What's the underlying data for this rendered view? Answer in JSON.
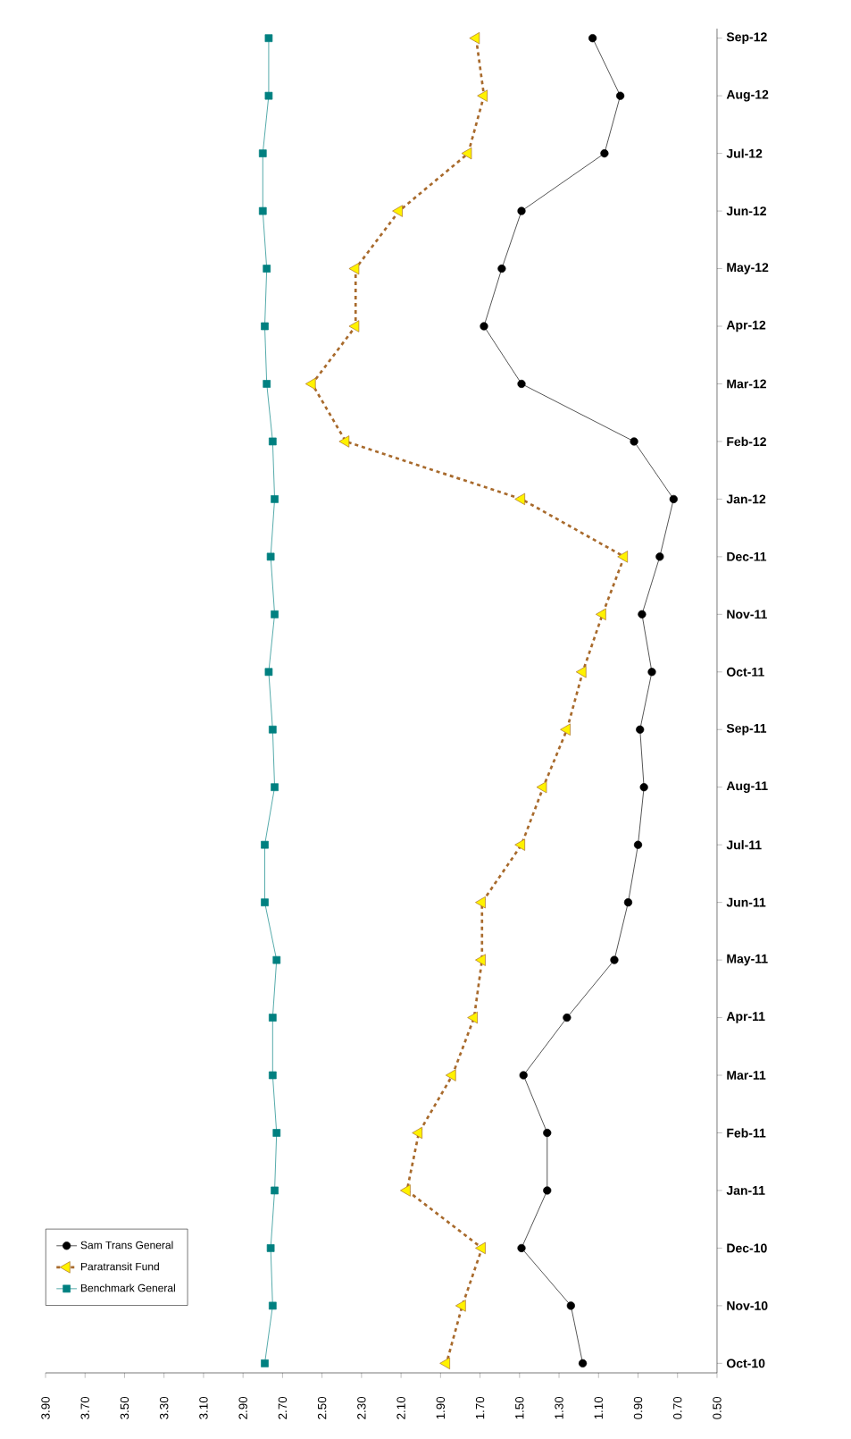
{
  "chart_data": {
    "type": "line",
    "orientation": "horizontal",
    "categories": [
      "Sep-12",
      "Aug-12",
      "Jul-12",
      "Jun-12",
      "May-12",
      "Apr-12",
      "Mar-12",
      "Feb-12",
      "Jan-12",
      "Dec-11",
      "Nov-11",
      "Oct-11",
      "Sep-11",
      "Aug-11",
      "Jul-11",
      "Jun-11",
      "May-11",
      "Apr-11",
      "Mar-11",
      "Feb-11",
      "Jan-11",
      "Dec-10",
      "Nov-10",
      "Oct-10"
    ],
    "xlim": [
      3.9,
      0.5
    ],
    "xticks": [
      {
        "value": 3.9,
        "label": "3.90"
      },
      {
        "value": 3.7,
        "label": "3.70"
      },
      {
        "value": 3.5,
        "label": "3.50"
      },
      {
        "value": 3.3,
        "label": "3.30"
      },
      {
        "value": 3.1,
        "label": "3.10"
      },
      {
        "value": 2.9,
        "label": "2.90"
      },
      {
        "value": 2.7,
        "label": "2.70"
      },
      {
        "value": 2.5,
        "label": "2.50"
      },
      {
        "value": 2.3,
        "label": "2.30"
      },
      {
        "value": 2.1,
        "label": "2.10"
      },
      {
        "value": 1.9,
        "label": "1.90"
      },
      {
        "value": 1.7,
        "label": "1.70"
      },
      {
        "value": 1.5,
        "label": "1.50"
      },
      {
        "value": 1.3,
        "label": "1.30"
      },
      {
        "value": 1.1,
        "label": "1.10"
      },
      {
        "value": 0.9,
        "label": "0.90"
      },
      {
        "value": 0.7,
        "label": "0.70"
      },
      {
        "value": 0.5,
        "label": "0.50"
      }
    ],
    "legend": "bottom left",
    "series": [
      {
        "name": "Sam Trans General",
        "color": "#000000",
        "marker": "circle",
        "line_style": "solid",
        "values": [
          1.13,
          0.99,
          1.07,
          1.49,
          1.59,
          1.68,
          1.49,
          0.92,
          0.72,
          0.79,
          0.88,
          0.83,
          0.89,
          0.87,
          0.9,
          0.95,
          1.02,
          1.26,
          1.48,
          1.36,
          1.36,
          1.49,
          1.24,
          1.18
        ]
      },
      {
        "name": "Paratransit Fund",
        "color": "#a86a2c",
        "marker": "triangle",
        "line_style": "dashed",
        "values": [
          1.72,
          1.68,
          1.76,
          2.11,
          2.33,
          2.33,
          2.55,
          2.38,
          1.49,
          0.97,
          1.08,
          1.18,
          1.26,
          1.38,
          1.49,
          1.69,
          1.69,
          1.73,
          1.84,
          2.01,
          2.07,
          1.69,
          1.79,
          1.87
        ]
      },
      {
        "name": "Benchmark General",
        "color": "#008080",
        "marker": "square",
        "line_style": "solid",
        "values": [
          2.77,
          2.77,
          2.8,
          2.8,
          2.78,
          2.79,
          2.78,
          2.75,
          2.74,
          2.76,
          2.74,
          2.77,
          2.75,
          2.74,
          2.79,
          2.79,
          2.73,
          2.75,
          2.75,
          2.73,
          2.74,
          2.76,
          2.75,
          2.79
        ]
      }
    ]
  }
}
